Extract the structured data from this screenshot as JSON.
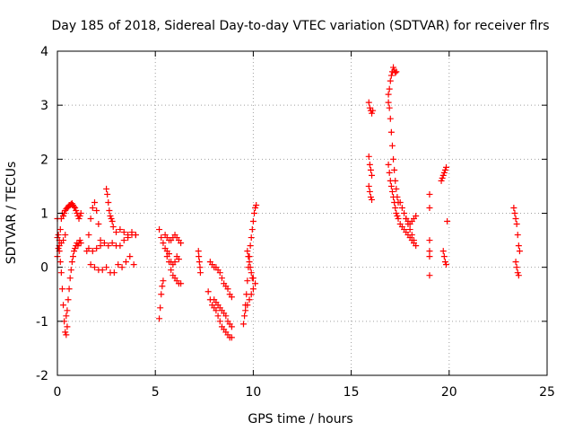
{
  "chart_data": {
    "type": "scatter",
    "title": "Day 185 of 2018, Sidereal Day-to-day VTEC variation (SDTVAR) for receiver flrs",
    "xlabel": "GPS time / hours",
    "ylabel": "SDTVAR / TECUs",
    "xlim": [
      0,
      25
    ],
    "ylim": [
      -2,
      4
    ],
    "xticks": [
      0,
      5,
      10,
      15,
      20,
      25
    ],
    "yticks": [
      -2,
      -1,
      0,
      1,
      2,
      3,
      4
    ],
    "xtick_labels": [
      "0",
      "5",
      "10",
      "15",
      "20",
      "25"
    ],
    "ytick_labels": [
      "-2",
      "-1",
      "0",
      "1",
      "2",
      "3",
      "4"
    ],
    "grid": true,
    "marker": "+",
    "color": "#ff0000",
    "series": [
      {
        "name": "SDTVAR flrs",
        "segments": [
          {
            "x": [
              0.0,
              0.05,
              0.1,
              0.15,
              0.2,
              0.25,
              0.3,
              0.35,
              0.4,
              0.45,
              0.5
            ],
            "y": [
              0.9,
              0.6,
              0.3,
              0.1,
              -0.1,
              -0.4,
              -0.7,
              -1.0,
              -1.2,
              -1.25,
              -1.1
            ]
          },
          {
            "x": [
              0.0,
              0.05,
              0.1,
              0.15,
              0.2,
              0.25,
              0.3
            ],
            "y": [
              0.2,
              0.35,
              0.5,
              0.7,
              0.9,
              1.0,
              0.95
            ]
          },
          {
            "x": [
              0.3,
              0.35,
              0.4,
              0.45,
              0.5,
              0.55,
              0.6,
              0.65,
              0.7,
              0.75,
              0.8,
              0.85,
              0.9,
              0.95,
              1.0,
              1.05,
              1.1,
              1.15,
              1.2
            ],
            "y": [
              0.95,
              1.0,
              1.05,
              1.08,
              1.1,
              1.12,
              1.15,
              1.15,
              1.17,
              1.18,
              1.15,
              1.12,
              1.1,
              1.05,
              1.0,
              0.95,
              0.9,
              0.95,
              1.0
            ]
          },
          {
            "x": [
              0.45,
              0.5,
              0.55,
              0.6,
              0.65,
              0.7,
              0.75,
              0.8,
              0.85,
              0.9,
              0.95,
              1.0,
              1.05,
              1.1,
              1.15,
              1.2
            ],
            "y": [
              -0.9,
              -0.8,
              -0.6,
              -0.4,
              -0.2,
              -0.05,
              0.1,
              0.2,
              0.3,
              0.35,
              0.4,
              0.45,
              0.4,
              0.45,
              0.5,
              0.45
            ]
          },
          {
            "x": [
              0.0,
              0.1,
              0.2,
              0.3,
              0.4
            ],
            "y": [
              0.55,
              0.4,
              0.45,
              0.5,
              0.6
            ]
          },
          {
            "x": [
              1.5,
              1.6,
              1.7,
              1.8,
              1.9,
              2.0,
              2.1,
              2.2
            ],
            "y": [
              0.3,
              0.6,
              0.9,
              1.1,
              1.2,
              1.05,
              0.8,
              0.5
            ]
          },
          {
            "x": [
              1.6,
              1.8,
              2.0,
              2.2,
              2.4,
              2.6,
              2.8,
              3.0,
              3.2,
              3.4,
              3.6,
              3.8,
              4.0
            ],
            "y": [
              0.35,
              0.3,
              0.35,
              0.4,
              0.45,
              0.4,
              0.45,
              0.4,
              0.4,
              0.5,
              0.55,
              0.6,
              0.6
            ]
          },
          {
            "x": [
              1.7,
              1.9,
              2.1,
              2.3,
              2.5,
              2.7,
              2.9,
              3.1,
              3.3,
              3.5,
              3.7,
              3.9
            ],
            "y": [
              0.05,
              0.0,
              -0.05,
              -0.05,
              0.0,
              -0.1,
              -0.1,
              0.05,
              0.0,
              0.1,
              0.2,
              0.05
            ]
          },
          {
            "x": [
              2.5,
              2.55,
              2.6,
              2.65,
              2.7,
              2.75,
              2.8,
              2.85
            ],
            "y": [
              1.45,
              1.35,
              1.2,
              1.05,
              0.95,
              0.9,
              0.85,
              0.75
            ]
          },
          {
            "x": [
              3.0,
              3.2,
              3.4,
              3.6,
              3.8,
              4.0
            ],
            "y": [
              0.65,
              0.7,
              0.65,
              0.6,
              0.65,
              0.6
            ]
          },
          {
            "x": [
              5.2,
              5.25,
              5.3,
              5.35,
              5.4
            ],
            "y": [
              -0.95,
              -0.75,
              -0.5,
              -0.35,
              -0.25
            ]
          },
          {
            "x": [
              5.2,
              5.3,
              5.4,
              5.5,
              5.6,
              5.7,
              5.8,
              5.9,
              6.0,
              6.1,
              6.2,
              6.3
            ],
            "y": [
              0.7,
              0.55,
              0.45,
              0.35,
              0.2,
              0.1,
              -0.05,
              -0.15,
              -0.2,
              -0.25,
              -0.3,
              -0.3
            ]
          },
          {
            "x": [
              5.5,
              5.6,
              5.7,
              5.8,
              5.9,
              6.0,
              6.1,
              6.2,
              6.3
            ],
            "y": [
              0.6,
              0.55,
              0.5,
              0.5,
              0.55,
              0.6,
              0.55,
              0.5,
              0.45
            ]
          },
          {
            "x": [
              5.6,
              5.7,
              5.8,
              5.9,
              6.0,
              6.1,
              6.2
            ],
            "y": [
              0.3,
              0.25,
              0.1,
              0.05,
              0.1,
              0.2,
              0.15
            ]
          },
          {
            "x": [
              7.2,
              7.22,
              7.25,
              7.28,
              7.3
            ],
            "y": [
              0.3,
              0.2,
              0.1,
              0.0,
              -0.1
            ]
          },
          {
            "x": [
              7.7,
              7.8,
              7.9,
              8.0,
              8.1,
              8.2,
              8.3,
              8.4,
              8.5,
              8.6,
              8.7,
              8.8,
              8.9
            ],
            "y": [
              -0.45,
              -0.6,
              -0.7,
              -0.75,
              -0.8,
              -0.9,
              -1.0,
              -1.1,
              -1.15,
              -1.2,
              -1.25,
              -1.3,
              -1.3
            ]
          },
          {
            "x": [
              7.8,
              7.9,
              8.0,
              8.1,
              8.2,
              8.3,
              8.4,
              8.5,
              8.6,
              8.7,
              8.8,
              8.9
            ],
            "y": [
              0.1,
              0.05,
              0.0,
              0.0,
              -0.05,
              -0.1,
              -0.2,
              -0.3,
              -0.35,
              -0.4,
              -0.5,
              -0.55
            ]
          },
          {
            "x": [
              8.0,
              8.1,
              8.2,
              8.3,
              8.4,
              8.5,
              8.6,
              8.7,
              8.8,
              8.9
            ],
            "y": [
              -0.6,
              -0.65,
              -0.7,
              -0.75,
              -0.8,
              -0.85,
              -0.9,
              -1.0,
              -1.05,
              -1.1
            ]
          },
          {
            "x": [
              9.5,
              9.55,
              9.6,
              9.65,
              9.7,
              9.75,
              9.8,
              9.85,
              9.9,
              9.95,
              10.0,
              10.05,
              10.1,
              10.15
            ],
            "y": [
              -1.05,
              -0.9,
              -0.7,
              -0.5,
              -0.25,
              0.0,
              0.2,
              0.4,
              0.55,
              0.7,
              0.85,
              1.0,
              1.1,
              1.15
            ]
          },
          {
            "x": [
              9.6,
              9.7,
              9.8,
              9.9,
              10.0,
              10.1
            ],
            "y": [
              -0.8,
              -0.7,
              -0.6,
              -0.5,
              -0.4,
              -0.3
            ]
          },
          {
            "x": [
              9.7,
              9.75,
              9.8,
              9.85,
              9.9,
              9.95,
              10.0
            ],
            "y": [
              0.3,
              0.2,
              0.1,
              0.0,
              -0.1,
              -0.2,
              -0.2
            ]
          },
          {
            "x": [
              15.9,
              15.95,
              16.0,
              16.05,
              16.1
            ],
            "y": [
              3.05,
              2.95,
              2.9,
              2.85,
              2.9
            ]
          },
          {
            "x": [
              15.9,
              15.95,
              16.0,
              16.05
            ],
            "y": [
              2.05,
              1.9,
              1.8,
              1.7
            ]
          },
          {
            "x": [
              15.9,
              15.95,
              16.0,
              16.05
            ],
            "y": [
              1.5,
              1.4,
              1.3,
              1.25
            ]
          },
          {
            "x": [
              16.9,
              16.95,
              17.0,
              17.05,
              17.1,
              17.15,
              17.2,
              17.25,
              17.3
            ],
            "y": [
              3.2,
              3.3,
              3.45,
              3.55,
              3.62,
              3.7,
              3.65,
              3.6,
              3.62
            ]
          },
          {
            "x": [
              16.9,
              16.95,
              17.0,
              17.05,
              17.1,
              17.15,
              17.2,
              17.25,
              17.3,
              17.35,
              17.4
            ],
            "y": [
              3.05,
              2.95,
              2.75,
              2.5,
              2.25,
              2.0,
              1.8,
              1.6,
              1.45,
              1.3,
              1.2
            ]
          },
          {
            "x": [
              16.9,
              16.95,
              17.0,
              17.05,
              17.1,
              17.15,
              17.2,
              17.25,
              17.3,
              17.35,
              17.4,
              17.5,
              17.6,
              17.7,
              17.8,
              17.9,
              18.0,
              18.1,
              18.2
            ],
            "y": [
              1.9,
              1.75,
              1.6,
              1.5,
              1.4,
              1.3,
              1.2,
              1.1,
              1.0,
              0.95,
              0.9,
              0.8,
              0.75,
              0.7,
              0.65,
              0.6,
              0.55,
              0.5,
              0.45
            ]
          },
          {
            "x": [
              17.5,
              17.6,
              17.7,
              17.8,
              17.9,
              18.0,
              18.1,
              18.2,
              18.3
            ],
            "y": [
              1.2,
              1.1,
              1.0,
              0.9,
              0.8,
              0.7,
              0.6,
              0.5,
              0.4
            ]
          },
          {
            "x": [
              17.8,
              17.9,
              18.0,
              18.1,
              18.2,
              18.3
            ],
            "y": [
              0.9,
              0.85,
              0.8,
              0.85,
              0.9,
              0.95
            ]
          },
          {
            "x": [
              19.0,
              19.0,
              19.0,
              19.0,
              19.0,
              19.0
            ],
            "y": [
              1.35,
              1.1,
              0.5,
              0.3,
              0.2,
              -0.15
            ]
          },
          {
            "x": [
              19.6,
              19.65,
              19.7,
              19.75,
              19.8,
              19.85
            ],
            "y": [
              1.6,
              1.65,
              1.7,
              1.75,
              1.8,
              1.85
            ]
          },
          {
            "x": [
              19.7,
              19.75,
              19.8,
              19.85
            ],
            "y": [
              0.3,
              0.2,
              0.1,
              0.05
            ]
          },
          {
            "x": [
              19.9
            ],
            "y": [
              0.85
            ]
          },
          {
            "x": [
              23.3,
              23.35,
              23.4,
              23.45,
              23.5,
              23.55,
              23.6
            ],
            "y": [
              1.1,
              1.0,
              0.9,
              0.8,
              0.6,
              0.4,
              0.3
            ]
          },
          {
            "x": [
              23.4,
              23.45,
              23.5,
              23.55
            ],
            "y": [
              0.1,
              0.0,
              -0.1,
              -0.15
            ]
          }
        ]
      }
    ]
  }
}
